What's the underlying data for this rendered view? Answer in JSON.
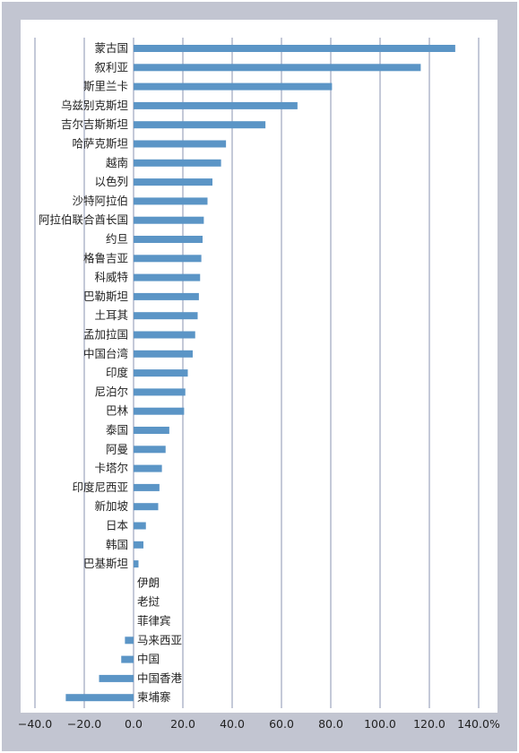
{
  "chart_data": {
    "type": "bar",
    "orientation": "horizontal",
    "categories": [
      "蒙古国",
      "叙利亚",
      "斯里兰卡",
      "乌兹别克斯坦",
      "吉尔吉斯斯坦",
      "哈萨克斯坦",
      "越南",
      "以色列",
      "沙特阿拉伯",
      "阿拉伯联合酋长国",
      "约旦",
      "格鲁吉亚",
      "科威特",
      "巴勒斯坦",
      "土耳其",
      "孟加拉国",
      "中国台湾",
      "印度",
      "尼泊尔",
      "巴林",
      "泰国",
      "阿曼",
      "卡塔尔",
      "印度尼西亚",
      "新加坡",
      "日本",
      "韩国",
      "巴基斯坦",
      "伊朗",
      "老挝",
      "菲律宾",
      "马来西亚",
      "中国",
      "中国香港",
      "柬埔寨"
    ],
    "values": [
      130.5,
      116.5,
      80.5,
      66.5,
      53.5,
      37.5,
      35.5,
      32,
      30,
      28.5,
      28,
      27.5,
      27,
      26.5,
      26,
      25,
      24,
      22,
      21,
      20.5,
      14.5,
      13,
      11.5,
      10.5,
      10,
      5,
      4,
      2,
      0,
      0,
      0,
      -3.5,
      -5,
      -14,
      -27.5
    ],
    "xlim": [
      -40,
      140
    ],
    "xticks": [
      "−40.0",
      "−20.0",
      "0.0",
      "20.0",
      "40.0",
      "60.0",
      "80.0",
      "100.0",
      "120.0",
      "140.0%"
    ],
    "grid": true,
    "bar_color": "#5b95c6",
    "background_color": "#c2c5d1",
    "plot_background_color": "#ffffff"
  }
}
